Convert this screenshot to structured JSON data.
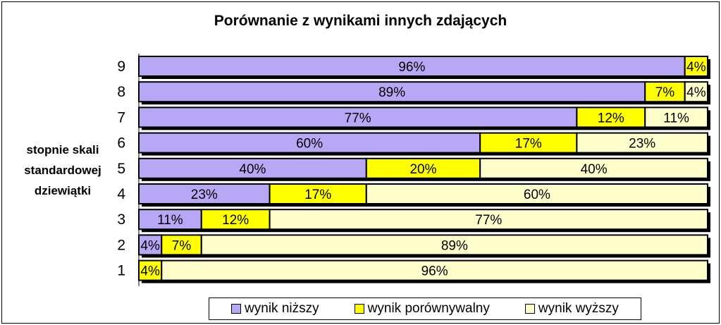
{
  "chart_data": {
    "type": "bar",
    "orientation": "horizontal",
    "stacked": "percent",
    "title": "Porównanie z wynikami innych zdających",
    "ylabel": "stopnie skali standardowej dziewiątki",
    "categories": [
      "9",
      "8",
      "7",
      "6",
      "5",
      "4",
      "3",
      "2",
      "1"
    ],
    "series": [
      {
        "name": "wynik niższy",
        "color": "#B7A7F5",
        "values": [
          96,
          89,
          77,
          60,
          40,
          23,
          11,
          4,
          0
        ],
        "labels": [
          "96%",
          "89%",
          "77%",
          "60%",
          "40%",
          "23%",
          "11%",
          "4%",
          ""
        ]
      },
      {
        "name": "wynik porównywalny",
        "color": "#FFFF00",
        "values": [
          4,
          7,
          12,
          17,
          20,
          17,
          12,
          7,
          4
        ],
        "labels": [
          "4%",
          "7%",
          "12%",
          "17%",
          "20%",
          "17%",
          "12%",
          "7%",
          "4%"
        ]
      },
      {
        "name": "wynik wyższy",
        "color": "#FFFFCC",
        "values": [
          0,
          4,
          11,
          23,
          40,
          60,
          77,
          89,
          96
        ],
        "labels": [
          "",
          "4%",
          "11%",
          "23%",
          "40%",
          "60%",
          "77%",
          "89%",
          "96%"
        ]
      }
    ],
    "xlim": [
      0,
      100
    ],
    "grid": false,
    "legend_position": "bottom"
  }
}
